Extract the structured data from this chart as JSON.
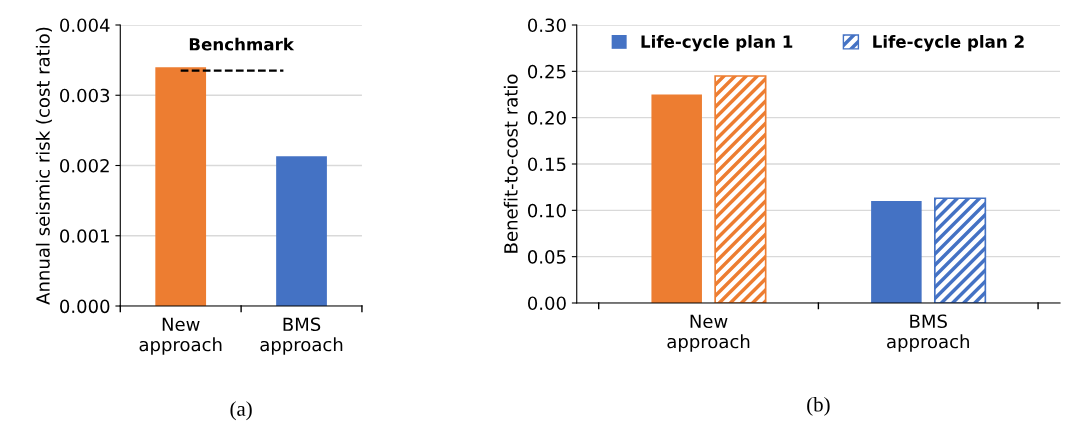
{
  "chart_data": [
    {
      "type": "bar",
      "title": "(a)",
      "ylabel": "Annual seismic risk (cost ratio)",
      "categories": [
        "New\napproach",
        "BMS\napproach"
      ],
      "values": [
        0.0034,
        0.00213
      ],
      "colors": [
        "#ed7d31",
        "#4472c4"
      ],
      "ylim": [
        0,
        0.004
      ],
      "yticks": [
        {
          "value": 0,
          "label": "0.000"
        },
        {
          "value": 0.001,
          "label": "0.001"
        },
        {
          "value": 0.002,
          "label": "0.002"
        },
        {
          "value": 0.003,
          "label": "0.003"
        },
        {
          "value": 0.004,
          "label": "0.004"
        }
      ],
      "grid": "y",
      "ref_lines": [
        {
          "axis": "y",
          "value": 0.00335,
          "label": "Benchmark",
          "color": "#000000",
          "line_style": "dashed"
        }
      ]
    },
    {
      "type": "bar",
      "title": "(b)",
      "ylabel": "Benefit-to-cost ratio",
      "categories": [
        "New\napproach",
        "BMS\napproach"
      ],
      "series": [
        {
          "name": "Life-cycle plan 1",
          "color": "#4472c4",
          "colors": [
            "#ed7d31",
            "#4472c4"
          ],
          "values": [
            0.225,
            0.11
          ]
        },
        {
          "name": "Life-cycle plan 2",
          "color": "#4472c4",
          "colors": [
            "#ed7d31",
            "#4472c4"
          ],
          "values": [
            0.245,
            0.113
          ]
        }
      ],
      "ylim": [
        0,
        0.3
      ],
      "yticks": [
        {
          "value": 0,
          "label": "0.00"
        },
        {
          "value": 0.05,
          "label": "0.05"
        },
        {
          "value": 0.1,
          "label": "0.10"
        },
        {
          "value": 0.15,
          "label": "0.15"
        },
        {
          "value": 0.2,
          "label": "0.20"
        },
        {
          "value": 0.25,
          "label": "0.25"
        },
        {
          "value": 0.3,
          "label": "0.30"
        }
      ],
      "grid": "y",
      "legend": "top"
    }
  ]
}
